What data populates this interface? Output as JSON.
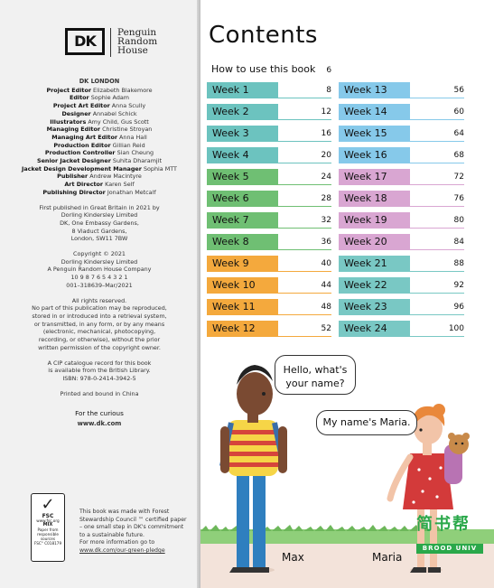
{
  "publisher": {
    "logo": "DK",
    "name_lines": [
      "Penguin",
      "Random",
      "House"
    ]
  },
  "imprint": {
    "city": "DK LONDON",
    "credits": [
      {
        "role": "Project Editor",
        "name": "Elizabeth Blakemore"
      },
      {
        "role": "Editor",
        "name": "Sophie Adam"
      },
      {
        "role": "Project Art Editor",
        "name": "Anna Scully"
      },
      {
        "role": "Designer",
        "name": "Annabel Schick"
      },
      {
        "role": "Illustrators",
        "name": "Amy Child, Gus Scott"
      },
      {
        "role": "Managing Editor",
        "name": "Christine Stroyan"
      },
      {
        "role": "Managing Art Editor",
        "name": "Anna Hall"
      },
      {
        "role": "Production Editor",
        "name": "Gillian Reid"
      },
      {
        "role": "Production Controller",
        "name": "Sian Cheung"
      },
      {
        "role": "Senior Jacket Designer",
        "name": "Suhita Dharamjit"
      },
      {
        "role": "Jacket Design Development Manager",
        "name": "Sophia MTT"
      },
      {
        "role": "Publisher",
        "name": "Andrew Macintyre"
      },
      {
        "role": "Art Director",
        "name": "Karen Self"
      },
      {
        "role": "Publishing Director",
        "name": "Jonathan Metcalf"
      }
    ],
    "first_published": [
      "First published in Great Britain in 2021 by",
      "Dorling Kindersley Limited",
      "DK, One Embassy Gardens,",
      "8 Viaduct Gardens,",
      "London, SW11 7BW"
    ],
    "copyright": [
      "Copyright © 2021",
      "Dorling Kindersley Limited",
      "A Penguin Random House Company",
      "10  9  8  7  6  5  4  3  2  1",
      "001–318639–Mar/2021"
    ],
    "rights": [
      "All rights reserved.",
      "No part of this publication may be reproduced,",
      "stored in or introduced into a retrieval system,",
      "or transmitted, in any form, or by any means",
      "(electronic, mechanical, photocopying,",
      "recording, or otherwise), without the prior",
      "written permission of the copyright owner."
    ],
    "cip": [
      "A CIP catalogue record for this book",
      "is available from the British Library.",
      "ISBN: 978-0-2414-3942-5"
    ],
    "printed": "Printed and bound in China",
    "tagline": "For the curious",
    "website": "www.dk.com"
  },
  "fsc": {
    "badge": [
      "FSC",
      "www.fsc.org",
      "MIX",
      "Paper from",
      "responsible sources",
      "FSC° C018179"
    ],
    "lines": [
      "This book was made with Forest",
      "Stewardship Council ™ certified paper",
      "– one small step in DK's commitment",
      "to a sustainable future.",
      "For more information go to"
    ],
    "link": "www.dk.com/our-green-pledge"
  },
  "contents": {
    "title": "Contents",
    "how_to": {
      "label": "How to use this book",
      "page": "6"
    },
    "weeks": [
      {
        "label": "Week 1",
        "page": "8",
        "color": "#6cc3bf"
      },
      {
        "label": "Week 2",
        "page": "12",
        "color": "#6cc3bf"
      },
      {
        "label": "Week 3",
        "page": "16",
        "color": "#6cc3bf"
      },
      {
        "label": "Week 4",
        "page": "20",
        "color": "#6cc3bf"
      },
      {
        "label": "Week 5",
        "page": "24",
        "color": "#6fbf73"
      },
      {
        "label": "Week 6",
        "page": "28",
        "color": "#6fbf73"
      },
      {
        "label": "Week 7",
        "page": "32",
        "color": "#6fbf73"
      },
      {
        "label": "Week 8",
        "page": "36",
        "color": "#6fbf73"
      },
      {
        "label": "Week 9",
        "page": "40",
        "color": "#f4a93d"
      },
      {
        "label": "Week 10",
        "page": "44",
        "color": "#f4a93d"
      },
      {
        "label": "Week 11",
        "page": "48",
        "color": "#f4a93d"
      },
      {
        "label": "Week 12",
        "page": "52",
        "color": "#f4a93d"
      },
      {
        "label": "Week 13",
        "page": "56",
        "color": "#86c9ea"
      },
      {
        "label": "Week 14",
        "page": "60",
        "color": "#86c9ea"
      },
      {
        "label": "Week 15",
        "page": "64",
        "color": "#86c9ea"
      },
      {
        "label": "Week 16",
        "page": "68",
        "color": "#86c9ea"
      },
      {
        "label": "Week 17",
        "page": "72",
        "color": "#d9a6d2"
      },
      {
        "label": "Week 18",
        "page": "76",
        "color": "#d9a6d2"
      },
      {
        "label": "Week 19",
        "page": "80",
        "color": "#d9a6d2"
      },
      {
        "label": "Week 20",
        "page": "84",
        "color": "#d9a6d2"
      },
      {
        "label": "Week 21",
        "page": "88",
        "color": "#79c8c4"
      },
      {
        "label": "Week 22",
        "page": "92",
        "color": "#79c8c4"
      },
      {
        "label": "Week 23",
        "page": "96",
        "color": "#79c8c4"
      },
      {
        "label": "Week 24",
        "page": "100",
        "color": "#79c8c4"
      }
    ]
  },
  "scene": {
    "bubble_1": [
      "Hello, what's",
      "your name?"
    ],
    "bubble_2": "My name's Maria.",
    "name_1": "Max",
    "name_2": "Maria"
  },
  "watermark": {
    "cn": "简书帮",
    "en": "BROOD UNIV"
  }
}
